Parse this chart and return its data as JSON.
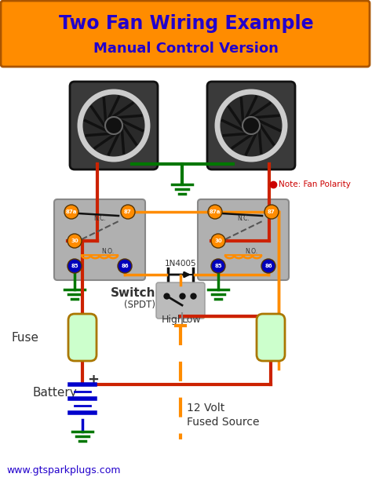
{
  "title_line1": "Two Fan Wiring Example",
  "title_line2": "Manual Control Version",
  "title_bg_color": "#FF8C00",
  "title_text_color": "#2200CC",
  "bg_color": "#FFFFFF",
  "website": "www.gtsparkplugs.com",
  "website_color": "#2200CC",
  "note_text": "Note: Fan Polarity",
  "note_color": "#CC0000",
  "wire_red": "#CC2200",
  "wire_green": "#007700",
  "wire_orange": "#FF8C00",
  "wire_blue": "#0000BB",
  "relay_bg": "#B0B0B0",
  "fan_bg": "#3A3A3A",
  "battery_color": "#0000CC",
  "fuse_outline": "#AA7700",
  "fuse_fill": "#CCFFCC",
  "switch_bg": "#BBBBBB",
  "pin_orange": "#FF8C00",
  "pin_blue": "#0000BB",
  "coil_color": "#FF8C00",
  "diode_color": "#111111",
  "ground_color": "#007700",
  "ground_bat_color": "#007700"
}
